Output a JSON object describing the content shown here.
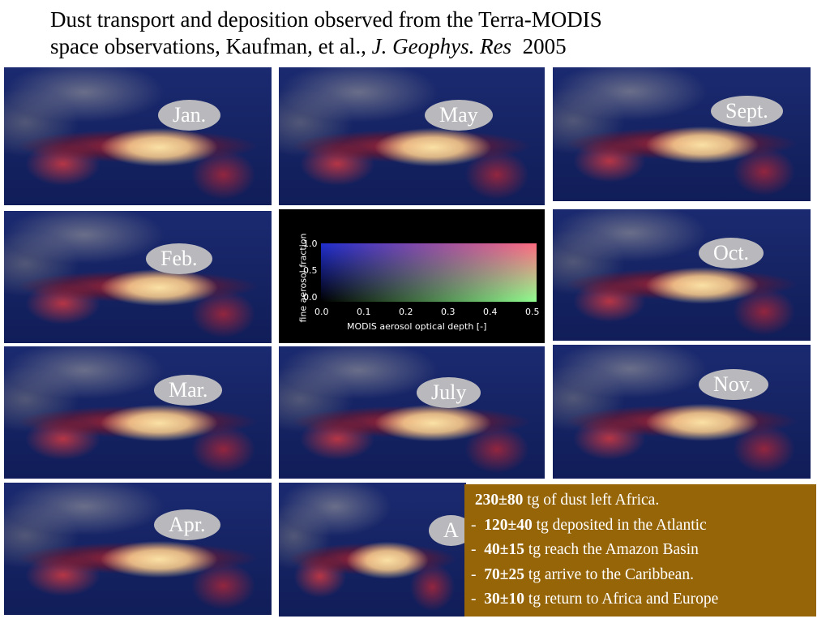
{
  "header": {
    "title": {
      "line1": "Dust transport and deposition observed from the Terra-MODIS",
      "line2_prefix": "space observations, Kaufman, et al.,",
      "journal": "J. Geophys. Res",
      "year": "2005"
    }
  },
  "panels": [
    {
      "label": "Jan."
    },
    {
      "label": "Feb."
    },
    {
      "label": "Mar."
    },
    {
      "label": "Apr."
    },
    {
      "label": "May"
    },
    {
      "label": "July"
    },
    {
      "label": "A"
    },
    {
      "label": "Sept."
    },
    {
      "label": "Oct."
    },
    {
      "label": "Nov."
    }
  ],
  "legend": {
    "y_label": "fine aerosol fraction",
    "y_ticks": [
      "1.0",
      "0.5",
      "0.0"
    ],
    "x_ticks": [
      "0.0",
      "0.1",
      "0.2",
      "0.3",
      "0.4",
      "0.5"
    ],
    "x_label": "MODIS aerosol optical depth [-]"
  },
  "summary": {
    "lines": [
      {
        "amount": "230±80",
        "text": "tg of dust left Africa."
      },
      {
        "prefix": "-",
        "amount": "120±40",
        "text": "tg deposited in the Atlantic"
      },
      {
        "prefix": "-",
        "amount": "40±15",
        "text": "tg reach the Amazon Basin"
      },
      {
        "prefix": "-",
        "amount": "70±25",
        "text": "tg arrive to the Caribbean."
      },
      {
        "prefix": "-",
        "amount": "30±10",
        "text": "tg return to Africa and Europe"
      }
    ]
  }
}
